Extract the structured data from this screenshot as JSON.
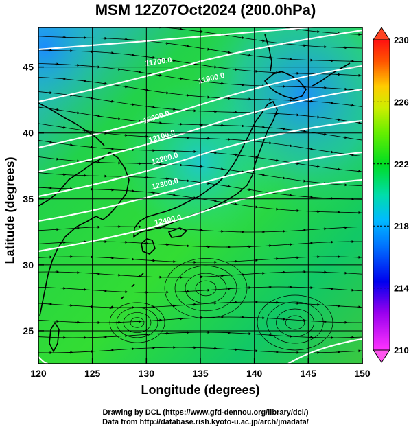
{
  "title": "MSM 12Z07Oct2024 (200.0hPa)",
  "xlabel": "Longitude (degrees)",
  "ylabel": "Latitude  (degrees)",
  "credit_line1": "Drawing by DCL (https://www.gfd-dennou.org/library/dcl/)",
  "credit_line2": "Data from http://database.rish.kyoto-u.ac.jp/arch/jmadata/",
  "chart_data": {
    "type": "heatmap",
    "x_range": [
      120,
      150
    ],
    "y_range": [
      22.5,
      48
    ],
    "x_ticks": [
      120,
      125,
      130,
      135,
      140,
      145,
      150
    ],
    "y_ticks": [
      25,
      30,
      35,
      40,
      45
    ],
    "colorbar": {
      "range": [
        210,
        230
      ],
      "ticks": [
        210,
        214,
        218,
        222,
        226,
        230
      ],
      "colors": [
        "#ff00ff",
        "#8800ff",
        "#0000ff",
        "#0077ff",
        "#00ccee",
        "#00dd88",
        "#00ee00",
        "#88ee00",
        "#ccee00",
        "#ffcc00",
        "#ff6600",
        "#ff0000"
      ]
    },
    "contours": [
      {
        "label": "11700.0"
      },
      {
        "label": "11900.0"
      },
      {
        "label": "12000.0"
      },
      {
        "label": "12100.0"
      },
      {
        "label": "12200.0"
      },
      {
        "label": "12300.0"
      },
      {
        "label": "12400.0"
      }
    ]
  }
}
